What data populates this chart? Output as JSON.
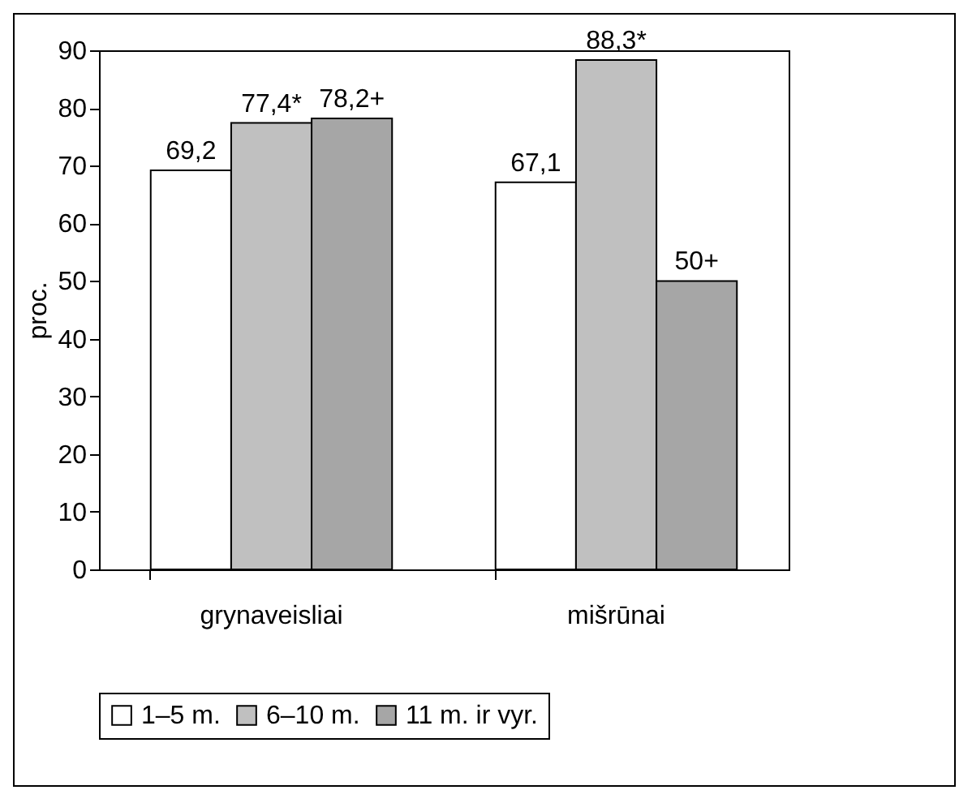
{
  "chart_data": {
    "type": "bar",
    "ylabel": "proc.",
    "categories": [
      "grynaveisliai",
      "mišrūnai"
    ],
    "series": [
      {
        "name": "1–5 m.",
        "color": "#ffffff",
        "values": [
          69.2,
          67.1
        ],
        "value_labels": [
          "69,2",
          "67,1"
        ]
      },
      {
        "name": "6–10 m.",
        "color": "#c0c0c0",
        "values": [
          77.4,
          88.3
        ],
        "value_labels": [
          "77,4*",
          "88,3*"
        ]
      },
      {
        "name": "11 m. ir vyr.",
        "color": "#a6a6a6",
        "values": [
          78.2,
          50
        ],
        "value_labels": [
          "78,2+",
          "50+"
        ]
      }
    ],
    "ylim": [
      0,
      90
    ],
    "yticks": [
      0,
      10,
      20,
      30,
      40,
      50,
      60,
      70,
      80,
      90
    ],
    "grid": false,
    "legend": "bottom"
  }
}
